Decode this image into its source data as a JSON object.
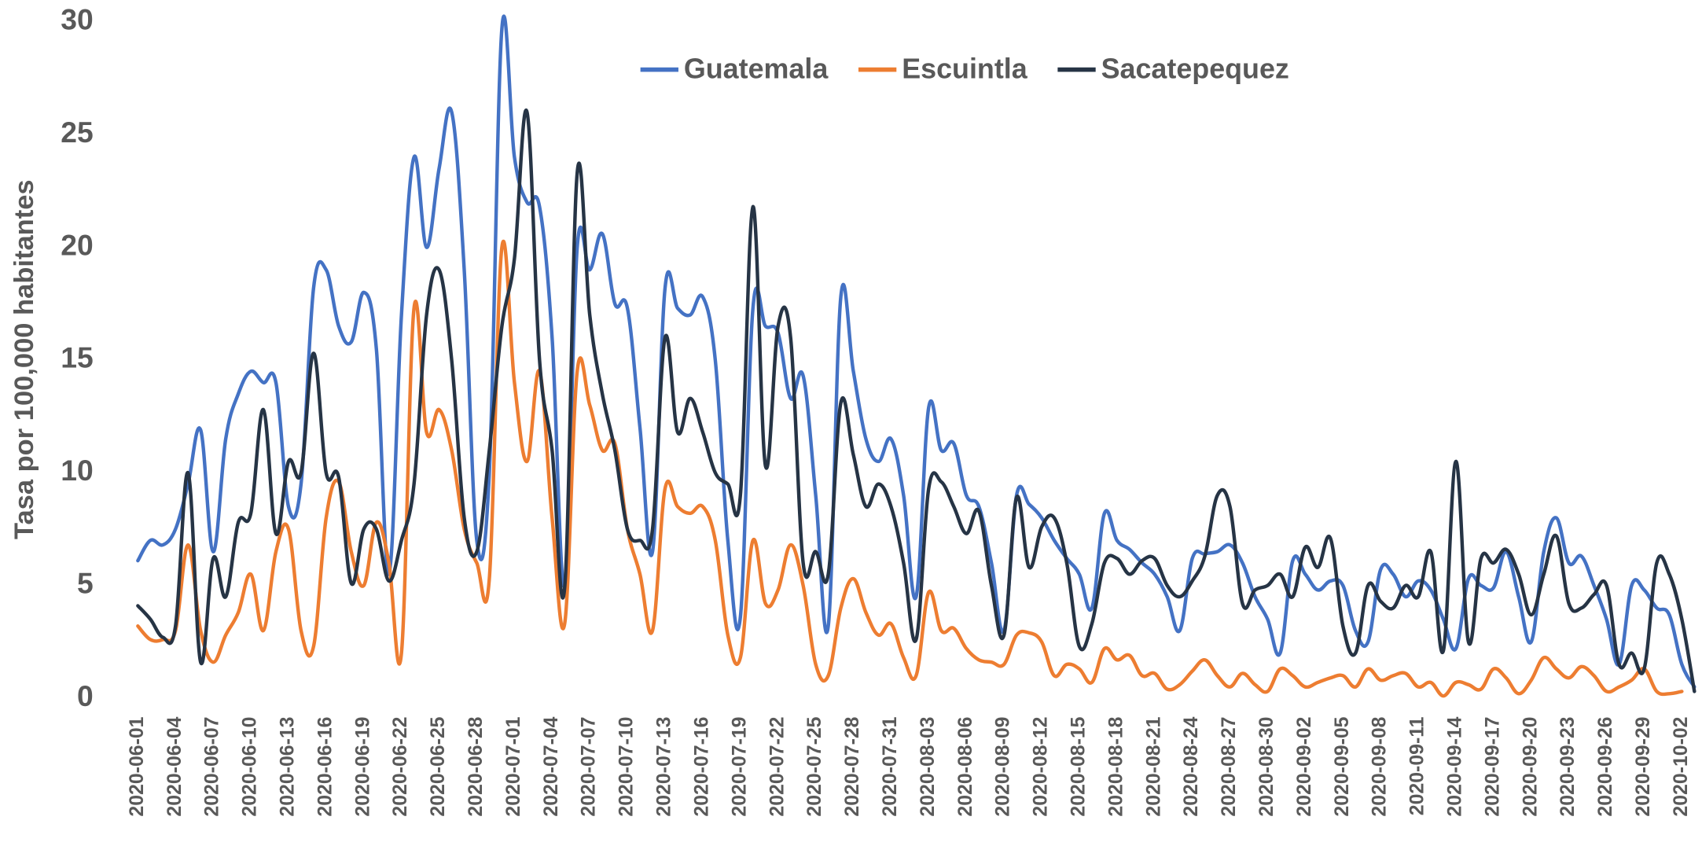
{
  "chart_data": {
    "type": "line",
    "y_label": "Tasa por 100,000 habitantes",
    "categories": [
      "2020-06-01",
      null,
      null,
      "2020-06-04",
      null,
      null,
      "2020-06-07",
      null,
      null,
      "2020-06-10",
      null,
      null,
      "2020-06-13",
      null,
      null,
      "2020-06-16",
      null,
      null,
      "2020-06-19",
      null,
      null,
      "2020-06-22",
      null,
      null,
      "2020-06-25",
      null,
      null,
      "2020-06-28",
      null,
      null,
      "2020-07-01",
      null,
      null,
      "2020-07-04",
      null,
      null,
      "2020-07-07",
      null,
      null,
      "2020-07-10",
      null,
      null,
      "2020-07-13",
      null,
      null,
      "2020-07-16",
      null,
      null,
      "2020-07-19",
      null,
      null,
      "2020-07-22",
      null,
      null,
      "2020-07-25",
      null,
      null,
      "2020-07-28",
      null,
      null,
      "2020-07-31",
      null,
      null,
      "2020-08-03",
      null,
      null,
      "2020-08-06",
      null,
      null,
      "2020-08-09",
      null,
      null,
      "2020-08-12",
      null,
      null,
      "2020-08-15",
      null,
      null,
      "2020-08-18",
      null,
      null,
      "2020-08-21",
      null,
      null,
      "2020-08-24",
      null,
      null,
      "2020-08-27",
      null,
      null,
      "2020-08-30",
      null,
      null,
      "2020-09-02",
      null,
      null,
      "2020-09-05",
      null,
      null,
      "2020-09-08",
      null,
      null,
      "2020-09-11",
      null,
      null,
      "2020-09-14",
      null,
      null,
      "2020-09-17",
      null,
      null,
      "2020-09-20",
      null,
      null,
      "2020-09-23",
      null,
      null,
      "2020-09-26",
      null,
      null,
      "2020-09-29",
      null,
      null,
      "2020-10-02",
      null
    ],
    "series": [
      {
        "name": "Guatemala",
        "color": "#4472c4",
        "values": [
          6.1,
          7.0,
          6.8,
          7.5,
          9.5,
          11.9,
          6.5,
          11.5,
          13.5,
          14.5,
          14.0,
          14.0,
          8.5,
          9.5,
          18.2,
          19.0,
          16.5,
          15.8,
          18.0,
          15.5,
          5.5,
          17.0,
          24.0,
          20.0,
          23.5,
          26.0,
          19.0,
          7.0,
          10.0,
          29.7,
          24.0,
          22.0,
          21.8,
          16.0,
          5.0,
          20.0,
          19.0,
          20.6,
          17.5,
          17.3,
          12.0,
          6.5,
          18.2,
          17.3,
          17.0,
          17.8,
          15.0,
          7.0,
          3.6,
          17.3,
          16.5,
          16.2,
          13.3,
          14.3,
          9.0,
          3.2,
          17.8,
          14.5,
          11.5,
          10.5,
          11.5,
          9.0,
          4.5,
          12.9,
          11.0,
          11.3,
          9.0,
          8.5,
          6.0,
          3.0,
          9.0,
          8.6,
          8.0,
          7.0,
          6.2,
          5.5,
          4.0,
          8.2,
          7.0,
          6.6,
          6.0,
          5.5,
          4.5,
          3.0,
          6.2,
          6.4,
          6.5,
          6.8,
          6.0,
          4.5,
          3.5,
          2.0,
          6.1,
          5.5,
          4.8,
          5.2,
          5.0,
          3.0,
          2.5,
          5.7,
          5.5,
          4.5,
          5.2,
          4.8,
          3.5,
          2.2,
          5.3,
          5.0,
          4.9,
          6.5,
          4.5,
          2.5,
          6.5,
          8.0,
          6.0,
          6.3,
          5.0,
          3.5,
          1.5,
          5.0,
          4.8,
          4.0,
          3.7,
          1.5,
          0.5
        ]
      },
      {
        "name": "Escuintla",
        "color": "#ed7d31",
        "values": [
          3.2,
          2.6,
          2.6,
          3.0,
          6.8,
          3.0,
          1.6,
          2.8,
          3.8,
          5.5,
          3.0,
          6.5,
          7.5,
          3.0,
          2.3,
          8.0,
          9.6,
          6.5,
          5.0,
          7.8,
          6.0,
          2.0,
          17.3,
          11.8,
          12.8,
          11.0,
          7.5,
          6.0,
          5.3,
          20.0,
          14.0,
          10.5,
          14.5,
          8.0,
          3.3,
          14.5,
          13.0,
          11.0,
          11.3,
          7.5,
          5.5,
          3.0,
          9.3,
          8.5,
          8.2,
          8.5,
          7.0,
          2.8,
          1.8,
          7.0,
          4.2,
          4.8,
          6.8,
          5.0,
          1.5,
          1.0,
          4.0,
          5.3,
          3.8,
          2.8,
          3.3,
          1.8,
          1.0,
          4.7,
          3.0,
          3.1,
          2.2,
          1.7,
          1.6,
          1.5,
          2.8,
          2.9,
          2.5,
          1.0,
          1.5,
          1.3,
          0.7,
          2.2,
          1.7,
          1.9,
          1.0,
          1.1,
          0.4,
          0.6,
          1.2,
          1.7,
          1.0,
          0.5,
          1.1,
          0.6,
          0.3,
          1.3,
          1.0,
          0.5,
          0.7,
          0.9,
          1.0,
          0.5,
          1.3,
          0.8,
          1.0,
          1.1,
          0.5,
          0.7,
          0.1,
          0.7,
          0.6,
          0.4,
          1.3,
          0.9,
          0.2,
          0.8,
          1.8,
          1.3,
          0.9,
          1.4,
          1.0,
          0.3,
          0.5,
          0.8,
          1.3,
          0.3,
          0.2,
          0.3,
          null
        ]
      },
      {
        "name": "Sacatepequez",
        "color": "#263445",
        "values": [
          4.1,
          3.5,
          2.7,
          3.2,
          10.0,
          1.6,
          6.2,
          4.5,
          7.8,
          8.2,
          12.8,
          7.3,
          10.5,
          10.0,
          15.3,
          10.0,
          9.8,
          5.1,
          7.5,
          7.5,
          5.2,
          7.0,
          9.5,
          17.0,
          19.0,
          15.0,
          8.0,
          6.5,
          11.0,
          16.5,
          19.5,
          26.0,
          15.0,
          11.0,
          4.9,
          23.3,
          17.0,
          13.5,
          11.0,
          7.5,
          7.0,
          7.5,
          16.0,
          11.8,
          13.3,
          11.8,
          10.0,
          9.5,
          9.0,
          21.8,
          10.3,
          16.5,
          16.0,
          6.0,
          6.5,
          5.5,
          13.1,
          10.8,
          8.5,
          9.5,
          8.5,
          6.0,
          2.6,
          9.3,
          9.6,
          8.5,
          7.3,
          8.3,
          5.0,
          2.8,
          8.9,
          5.8,
          7.6,
          8.0,
          6.0,
          2.3,
          3.3,
          6.0,
          6.2,
          5.5,
          6.1,
          6.2,
          5.0,
          4.5,
          5.2,
          6.3,
          9.0,
          8.5,
          4.2,
          4.8,
          5.0,
          5.5,
          4.5,
          6.7,
          5.8,
          7.1,
          3.2,
          2.0,
          5.0,
          4.3,
          4.0,
          5.0,
          4.5,
          6.5,
          2.1,
          10.5,
          2.5,
          6.2,
          6.0,
          6.6,
          5.5,
          3.7,
          5.5,
          7.2,
          4.2,
          4.0,
          4.6,
          5.0,
          1.5,
          2.0,
          1.3,
          6.0,
          5.5,
          3.5,
          0.3
        ]
      }
    ],
    "ylim": [
      0,
      30
    ],
    "yticks": [
      0,
      5,
      10,
      15,
      20,
      25,
      30
    ]
  }
}
